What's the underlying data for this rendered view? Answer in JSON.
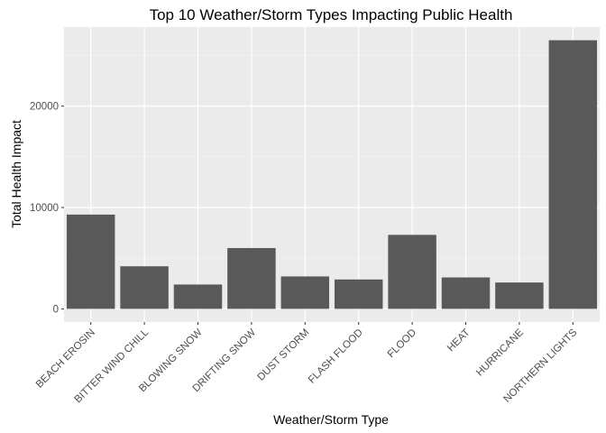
{
  "chart_data": {
    "type": "bar",
    "title": "Top 10 Weather/Storm Types Impacting Public Health",
    "xlabel": "Weather/Storm Type",
    "ylabel": "Total Health Impact",
    "categories": [
      "BEACH EROSIN",
      "BITTER WIND CHILL",
      "BLOWING SNOW",
      "DRIFTING SNOW",
      "DUST STORM",
      "FLASH FLOOD",
      "FLOOD",
      "HEAT",
      "HURRICANE",
      "NORTHERN LIGHTS"
    ],
    "values": [
      9300,
      4200,
      2400,
      6000,
      3200,
      2900,
      7300,
      3100,
      2600,
      26500
    ],
    "ylim": [
      -1300,
      27800
    ],
    "yticks": [
      0,
      10000,
      20000
    ],
    "ytick_labels": [
      "0",
      "10000",
      "20000"
    ],
    "grid": true,
    "legend": "none",
    "colors": {
      "bar": "#595959",
      "panel": "#ebebeb",
      "grid_major": "#ffffff",
      "grid_minor": "#f5f5f5",
      "tick": "#333333"
    }
  }
}
